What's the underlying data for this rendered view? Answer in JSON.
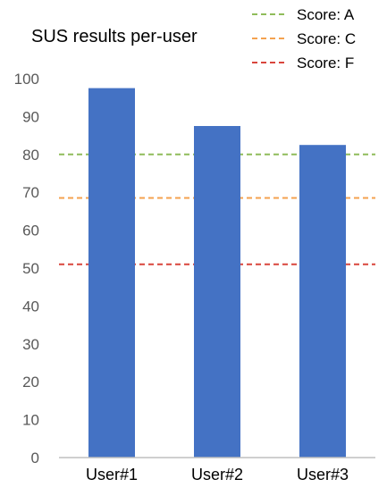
{
  "chart_data": {
    "type": "bar",
    "title": "SUS results per-user",
    "categories": [
      "User#1",
      "User#2",
      "User#3"
    ],
    "values": [
      97.5,
      87.5,
      82.5
    ],
    "ylim": [
      0,
      100
    ],
    "yticks": [
      0,
      10,
      20,
      30,
      40,
      50,
      60,
      70,
      80,
      90,
      100
    ],
    "grid": false,
    "legend_position": "top-right",
    "colors": {
      "bar": "#4472c4",
      "axis": "#bfbfbf",
      "tick_label": "#595959",
      "title": "#000000"
    },
    "reference_lines": [
      {
        "name": "Score: A",
        "value": 80,
        "color": "#8fbc5a"
      },
      {
        "name": "Score: C",
        "value": 68.5,
        "color": "#f4a24f"
      },
      {
        "name": "Score: F",
        "value": 51,
        "color": "#d9453c"
      }
    ]
  }
}
